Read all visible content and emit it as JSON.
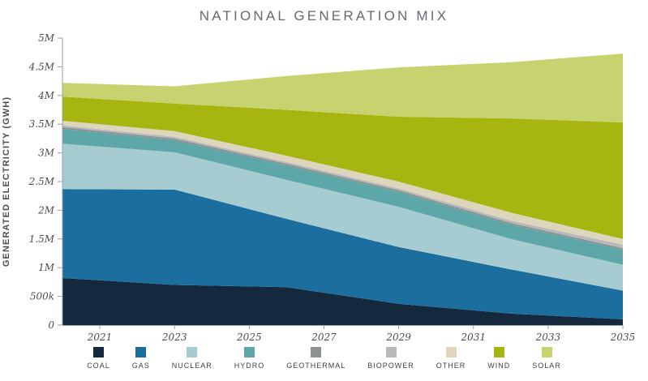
{
  "title": "NATIONAL GENERATION MIX",
  "y_axis_label": "GENERATED ELECTRICITY (GWH)",
  "chart_data": {
    "type": "area",
    "stacked": true,
    "title": "NATIONAL GENERATION MIX",
    "xlabel": "",
    "ylabel": "GENERATED ELECTRICITY (GWH)",
    "xlim": [
      2020,
      2035
    ],
    "ylim": [
      0,
      5000000
    ],
    "grid": false,
    "legend_position": "bottom",
    "x": [
      2020,
      2023,
      2026,
      2029,
      2032,
      2035
    ],
    "x_ticks": [
      2021,
      2023,
      2025,
      2027,
      2029,
      2031,
      2033,
      2035
    ],
    "x_tick_labels": [
      "2021",
      "2023",
      "2025",
      "2027",
      "2029",
      "2031",
      "2033",
      "2035"
    ],
    "y_ticks": [
      0,
      500000,
      1000000,
      1500000,
      2000000,
      2500000,
      3000000,
      3500000,
      4000000,
      4500000,
      5000000
    ],
    "y_tick_labels": [
      "0",
      "500k",
      "1M",
      "1.5M",
      "2M",
      "2.5M",
      "3M",
      "3.5M",
      "4M",
      "4.5M",
      "5M"
    ],
    "series": [
      {
        "name": "COAL",
        "color": "#14293e",
        "values": [
          820000,
          700000,
          660000,
          370000,
          200000,
          100000
        ]
      },
      {
        "name": "GAS",
        "color": "#1c6e9e",
        "values": [
          1550000,
          1660000,
          1190000,
          990000,
          770000,
          500000
        ]
      },
      {
        "name": "NUCLEAR",
        "color": "#a6cbd0",
        "values": [
          790000,
          650000,
          680000,
          700000,
          530000,
          450000
        ]
      },
      {
        "name": "HYDRO",
        "color": "#5ea7a9",
        "values": [
          260000,
          210000,
          250000,
          260000,
          250000,
          260000
        ]
      },
      {
        "name": "GEOTHERMAL",
        "color": "#8e9192",
        "values": [
          30000,
          30000,
          30000,
          30000,
          30000,
          30000
        ]
      },
      {
        "name": "BIOPOWER",
        "color": "#b7b9ba",
        "values": [
          30000,
          30000,
          30000,
          30000,
          40000,
          60000
        ]
      },
      {
        "name": "OTHER",
        "color": "#ded5bd",
        "values": [
          80000,
          100000,
          110000,
          120000,
          140000,
          100000
        ]
      },
      {
        "name": "WIND",
        "color": "#a7b511",
        "values": [
          420000,
          480000,
          800000,
          1130000,
          1640000,
          2030000
        ]
      },
      {
        "name": "SOLAR",
        "color": "#c7d36e",
        "values": [
          240000,
          300000,
          590000,
          860000,
          980000,
          1200000
        ]
      }
    ],
    "axis_color": "#9aa0a3"
  }
}
